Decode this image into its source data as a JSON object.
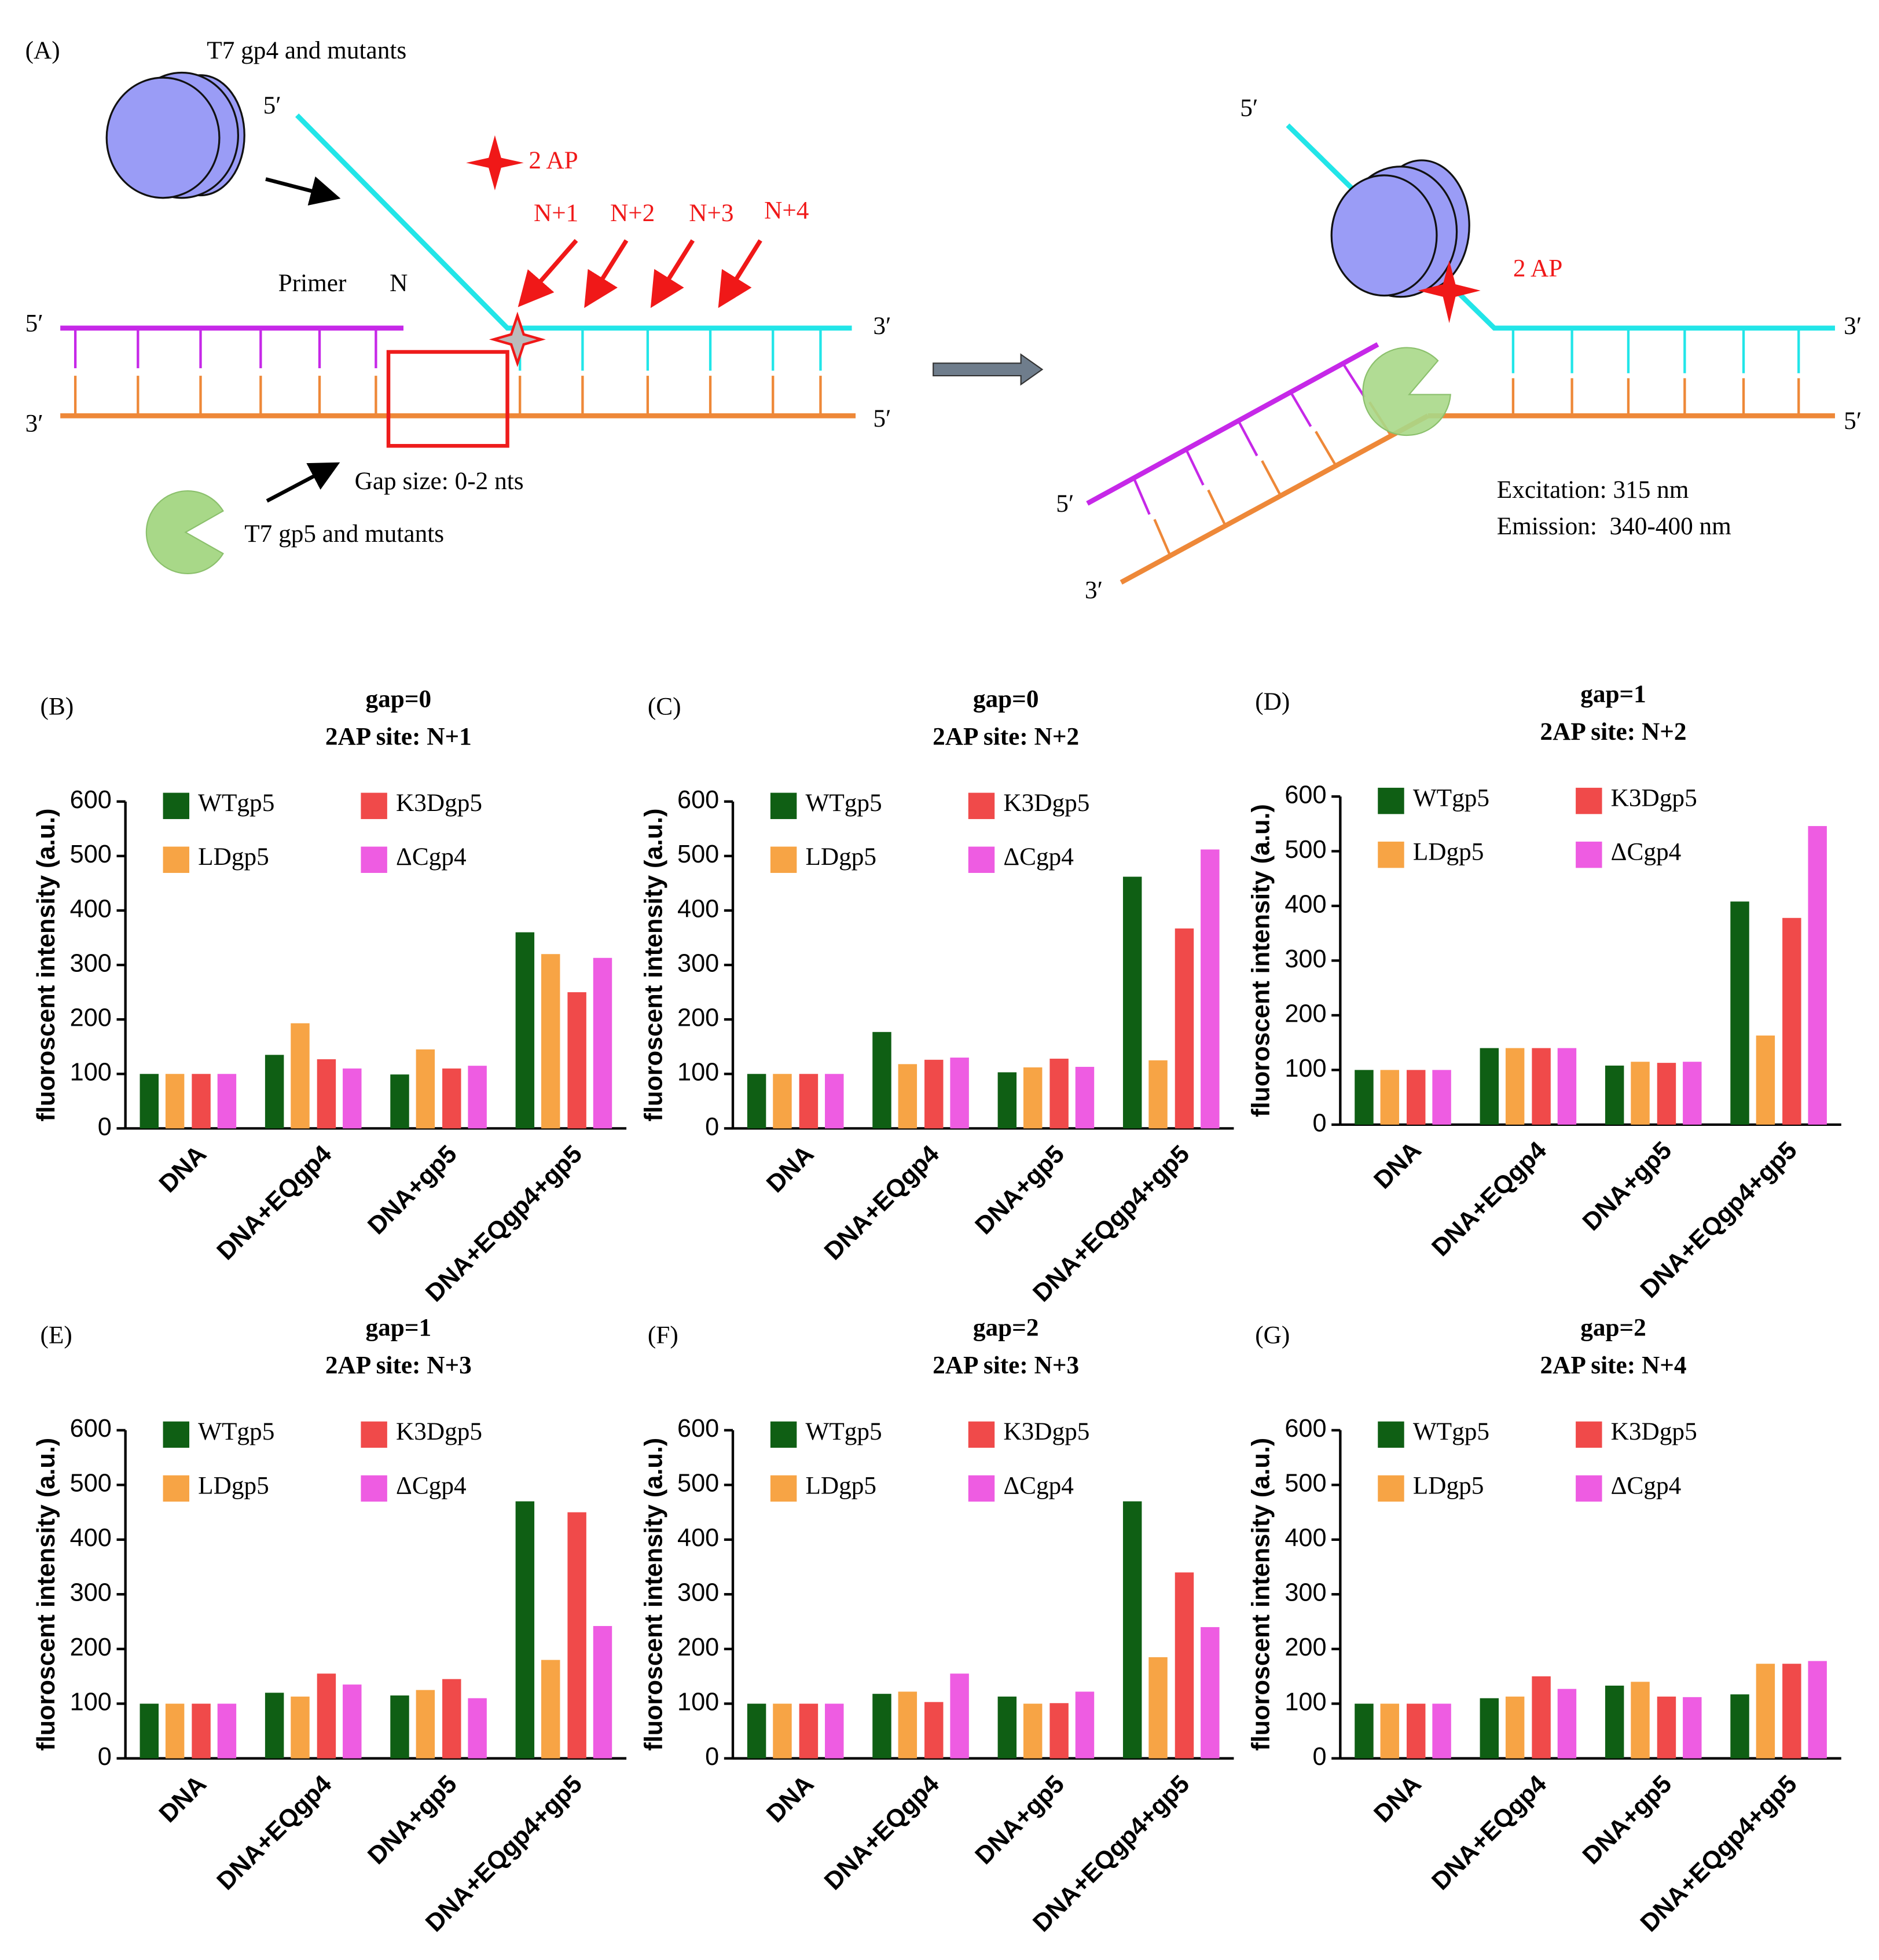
{
  "diagram": {
    "panel": "(A)",
    "gp4_label": "T7 gp4 and mutants",
    "gp5_label": "T7 gp5 and mutants",
    "ap_label": "2 AP",
    "sites": [
      "N+1",
      "N+2",
      "N+3",
      "N+4"
    ],
    "primer": "Primer",
    "n": "N",
    "gap": "Gap size: 0-2 nts",
    "five": "5′",
    "three": "3′",
    "excitation": "Excitation: 315 nm",
    "emission": "Emission:  340-400 nm"
  },
  "chart_data": [
    {
      "type": "bar",
      "panel": "(B)",
      "title": "gap=0",
      "subtitle": "2AP site: N+1",
      "ylabel": "fluoroscent intensity (a.u.)",
      "categories": [
        "DNA",
        "DNA+EQgp4",
        "DNA+gp5",
        "DNA+EQgp4+gp5"
      ],
      "ylim": [
        0,
        600
      ],
      "yticks": [
        0,
        100,
        200,
        300,
        400,
        500,
        600
      ],
      "series": [
        {
          "name": "WTgp5",
          "color": "#0f5f14",
          "values": [
            100,
            135,
            99,
            360
          ]
        },
        {
          "name": "LDgp5",
          "color": "#f7a445",
          "values": [
            100,
            193,
            145,
            320
          ]
        },
        {
          "name": "K3Dgp5",
          "color": "#f04a4a",
          "values": [
            100,
            127,
            110,
            250
          ]
        },
        {
          "name": "ΔCgp4",
          "color": "#ee5ce2",
          "values": [
            100,
            110,
            115,
            313
          ]
        }
      ]
    },
    {
      "type": "bar",
      "panel": "(C)",
      "title": "gap=0",
      "subtitle": "2AP site: N+2",
      "ylabel": "fluoroscent intensity (a.u.)",
      "categories": [
        "DNA",
        "DNA+EQgp4",
        "DNA+gp5",
        "DNA+EQgp4+gp5"
      ],
      "ylim": [
        0,
        600
      ],
      "yticks": [
        0,
        100,
        200,
        300,
        400,
        500,
        600
      ],
      "series": [
        {
          "name": "WTgp5",
          "color": "#0f5f14",
          "values": [
            100,
            177,
            103,
            462
          ]
        },
        {
          "name": "LDgp5",
          "color": "#f7a445",
          "values": [
            100,
            118,
            112,
            125
          ]
        },
        {
          "name": "K3Dgp5",
          "color": "#f04a4a",
          "values": [
            100,
            126,
            128,
            367
          ]
        },
        {
          "name": "ΔCgp4",
          "color": "#ee5ce2",
          "values": [
            100,
            130,
            113,
            512
          ]
        }
      ]
    },
    {
      "type": "bar",
      "panel": "(D)",
      "title": "gap=1",
      "subtitle": "2AP site: N+2",
      "ylabel": "fluoroscent intensity (a.u.)",
      "categories": [
        "DNA",
        "DNA+EQgp4",
        "DNA+gp5",
        "DNA+EQgp4+gp5"
      ],
      "ylim": [
        0,
        600
      ],
      "yticks": [
        0,
        100,
        200,
        300,
        400,
        500,
        600
      ],
      "series": [
        {
          "name": "WTgp5",
          "color": "#0f5f14",
          "values": [
            100,
            140,
            108,
            408
          ]
        },
        {
          "name": "LDgp5",
          "color": "#f7a445",
          "values": [
            100,
            140,
            115,
            163
          ]
        },
        {
          "name": "K3Dgp5",
          "color": "#f04a4a",
          "values": [
            100,
            140,
            113,
            378
          ]
        },
        {
          "name": "ΔCgp4",
          "color": "#ee5ce2",
          "values": [
            100,
            140,
            115,
            546
          ]
        }
      ]
    },
    {
      "type": "bar",
      "panel": "(E)",
      "title": "gap=1",
      "subtitle": "2AP site: N+3",
      "ylabel": "fluoroscent intensity (a.u.)",
      "categories": [
        "DNA",
        "DNA+EQgp4",
        "DNA+gp5",
        "DNA+EQgp4+gp5"
      ],
      "ylim": [
        0,
        600
      ],
      "yticks": [
        0,
        100,
        200,
        300,
        400,
        500,
        600
      ],
      "series": [
        {
          "name": "WTgp5",
          "color": "#0f5f14",
          "values": [
            100,
            120,
            115,
            470
          ]
        },
        {
          "name": "LDgp5",
          "color": "#f7a445",
          "values": [
            100,
            113,
            125,
            180
          ]
        },
        {
          "name": "K3Dgp5",
          "color": "#f04a4a",
          "values": [
            100,
            155,
            145,
            450
          ]
        },
        {
          "name": "ΔCgp4",
          "color": "#ee5ce2",
          "values": [
            100,
            135,
            110,
            242
          ]
        }
      ]
    },
    {
      "type": "bar",
      "panel": "(F)",
      "title": "gap=2",
      "subtitle": "2AP site: N+3",
      "ylabel": "fluoroscent intensity (a.u.)",
      "categories": [
        "DNA",
        "DNA+EQgp4",
        "DNA+gp5",
        "DNA+EQgp4+gp5"
      ],
      "ylim": [
        0,
        600
      ],
      "yticks": [
        0,
        100,
        200,
        300,
        400,
        500,
        600
      ],
      "series": [
        {
          "name": "WTgp5",
          "color": "#0f5f14",
          "values": [
            100,
            118,
            113,
            470
          ]
        },
        {
          "name": "LDgp5",
          "color": "#f7a445",
          "values": [
            100,
            122,
            100,
            185
          ]
        },
        {
          "name": "K3Dgp5",
          "color": "#f04a4a",
          "values": [
            100,
            103,
            101,
            340
          ]
        },
        {
          "name": "ΔCgp4",
          "color": "#ee5ce2",
          "values": [
            100,
            155,
            122,
            240
          ]
        }
      ]
    },
    {
      "type": "bar",
      "panel": "(G)",
      "title": "gap=2",
      "subtitle": "2AP site: N+4",
      "ylabel": "fluoroscent intensity (a.u.)",
      "categories": [
        "DNA",
        "DNA+EQgp4",
        "DNA+gp5",
        "DNA+EQgp4+gp5"
      ],
      "ylim": [
        0,
        600
      ],
      "yticks": [
        0,
        100,
        200,
        300,
        400,
        500,
        600
      ],
      "series": [
        {
          "name": "WTgp5",
          "color": "#0f5f14",
          "values": [
            100,
            110,
            133,
            117
          ]
        },
        {
          "name": "LDgp5",
          "color": "#f7a445",
          "values": [
            100,
            113,
            140,
            173
          ]
        },
        {
          "name": "K3Dgp5",
          "color": "#f04a4a",
          "values": [
            100,
            150,
            113,
            173
          ]
        },
        {
          "name": "ΔCgp4",
          "color": "#ee5ce2",
          "values": [
            100,
            127,
            112,
            178
          ]
        }
      ]
    }
  ]
}
